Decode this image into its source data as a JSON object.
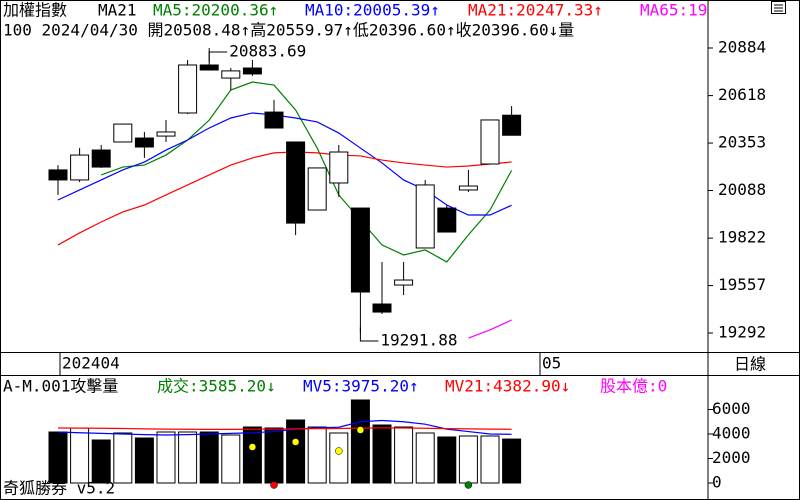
{
  "header": {
    "items": [
      {
        "text": "加權指數",
        "color": "#000000"
      },
      {
        "text": "MA21",
        "color": "#000000"
      },
      {
        "text": "MA5:20200.36↑",
        "color": "#008000"
      },
      {
        "text": "MA10:20005.39↑",
        "color": "#0000ff"
      },
      {
        "text": "MA21:20247.33↑",
        "color": "#ff0000"
      },
      {
        "text": "MA65:19",
        "color": "#ff00ff"
      }
    ],
    "line2": "100 2024/04/30 開20508.48↑高20559.97↑低20396.60↑收20396.60↓量"
  },
  "chart_data": [
    {
      "type": "candlestick",
      "open": [
        20203,
        20147,
        20314,
        20359,
        20381,
        20392,
        20521,
        20789,
        20716,
        20772,
        20526,
        20359,
        19979,
        20130,
        19990,
        19454,
        19560,
        19767,
        19990,
        20091,
        20236,
        20508.48
      ],
      "high": [
        20230,
        20325,
        20342,
        20459,
        20415,
        20482,
        20817,
        20883.69,
        20772,
        20817,
        20594,
        20359,
        20214,
        20342,
        19990,
        19689,
        19689,
        20147,
        20007,
        20203,
        20482,
        20559.97
      ],
      "low": [
        20063,
        20135,
        20214,
        20359,
        20270,
        20359,
        20515,
        20761,
        20649,
        20728,
        20437,
        19839,
        19979,
        20052,
        19291.88,
        19398,
        19504,
        19767,
        19856,
        20080,
        20236,
        20396.6
      ],
      "close": [
        20147,
        20286,
        20219,
        20459,
        20331,
        20415,
        20789,
        20761,
        20756,
        20739,
        20437,
        19906,
        20214,
        20303,
        19521,
        19409,
        19588,
        20119,
        19856,
        20113,
        20482,
        20396.6
      ],
      "up_color": "#ffffff",
      "down_color": "#000000",
      "series": [
        {
          "color": "#008000",
          "values": [
            null,
            null,
            20175,
            20219,
            20230,
            20286,
            20370,
            20481,
            20649,
            20694,
            20677,
            20538,
            20325,
            20063,
            19923,
            19784,
            19728,
            19756,
            19689,
            19840,
            19979,
            20200.36
          ]
        },
        {
          "color": "#0000ff",
          "values": [
            20035,
            20091,
            20147,
            20203,
            20247,
            20314,
            20370,
            20437,
            20493,
            20521,
            20510,
            20493,
            20471,
            20409,
            20325,
            20242,
            20147,
            20091,
            20007,
            19951,
            19951,
            20005.39
          ]
        },
        {
          "color": "#ff0000",
          "values": [
            19784,
            19851,
            19912,
            19968,
            20007,
            20063,
            20119,
            20175,
            20230,
            20270,
            20298,
            20303,
            20298,
            20286,
            20281,
            20258,
            20242,
            20230,
            20219,
            20225,
            20236,
            20247.33
          ]
        },
        {
          "color": "#ff00ff",
          "values": [
            null,
            null,
            null,
            null,
            null,
            null,
            null,
            null,
            null,
            null,
            null,
            null,
            null,
            null,
            null,
            null,
            null,
            null,
            null,
            19264,
            19309,
            19365
          ]
        }
      ],
      "ylim": [
        19186,
        21152
      ],
      "yticks": [
        19292,
        19557,
        19822,
        20088,
        20353,
        20618,
        20884
      ],
      "x_labels": [
        "202404",
        "05"
      ],
      "period": "日線"
    },
    {
      "type": "bar",
      "header": [
        {
          "text": "A-M.001攻擊量",
          "color": "#000000"
        },
        {
          "text": "成交:3585.20↓",
          "color": "#008000"
        },
        {
          "text": "MV5:3975.20↑",
          "color": "#0000ff"
        },
        {
          "text": "MV21:4382.90↓",
          "color": "#ff0000"
        },
        {
          "text": "股本億:0",
          "color": "#ff00ff"
        }
      ],
      "values": [
        4163,
        4490,
        3510,
        4082,
        3673,
        4163,
        4163,
        4163,
        3918,
        4571,
        4490,
        5143,
        4571,
        4082,
        6776,
        4735,
        4571,
        4082,
        3755,
        3837,
        3837,
        3585.2
      ],
      "series": [
        {
          "color": "#0000ff",
          "values": [
            4160,
            4100,
            4050,
            4000,
            3950,
            3920,
            3950,
            4000,
            4050,
            4100,
            4200,
            4400,
            4500,
            4550,
            5000,
            5100,
            5000,
            4800,
            4400,
            4200,
            4000,
            3975.2
          ]
        },
        {
          "color": "#ff0000",
          "values": [
            4490,
            4480,
            4470,
            4450,
            4420,
            4400,
            4390,
            4380,
            4380,
            4390,
            4400,
            4420,
            4440,
            4450,
            4480,
            4500,
            4490,
            4470,
            4440,
            4420,
            4400,
            4382.9
          ]
        }
      ],
      "markers": [
        {
          "index": 9,
          "color": "#ffff00",
          "value": 2939
        },
        {
          "index": 10,
          "color": "#ff0000",
          "value": -163
        },
        {
          "index": 11,
          "color": "#ffff00",
          "value": 3347
        },
        {
          "index": 13,
          "color": "#ffff00",
          "value": 2612
        },
        {
          "index": 14,
          "color": "#ffff00",
          "value": 4327
        },
        {
          "index": 19,
          "color": "#008000",
          "value": -163
        }
      ],
      "ylim": [
        -1388,
        8816
      ],
      "yticks": [
        0,
        2000,
        4000,
        6000
      ]
    }
  ],
  "footer": "奇狐勝券 v5.2"
}
